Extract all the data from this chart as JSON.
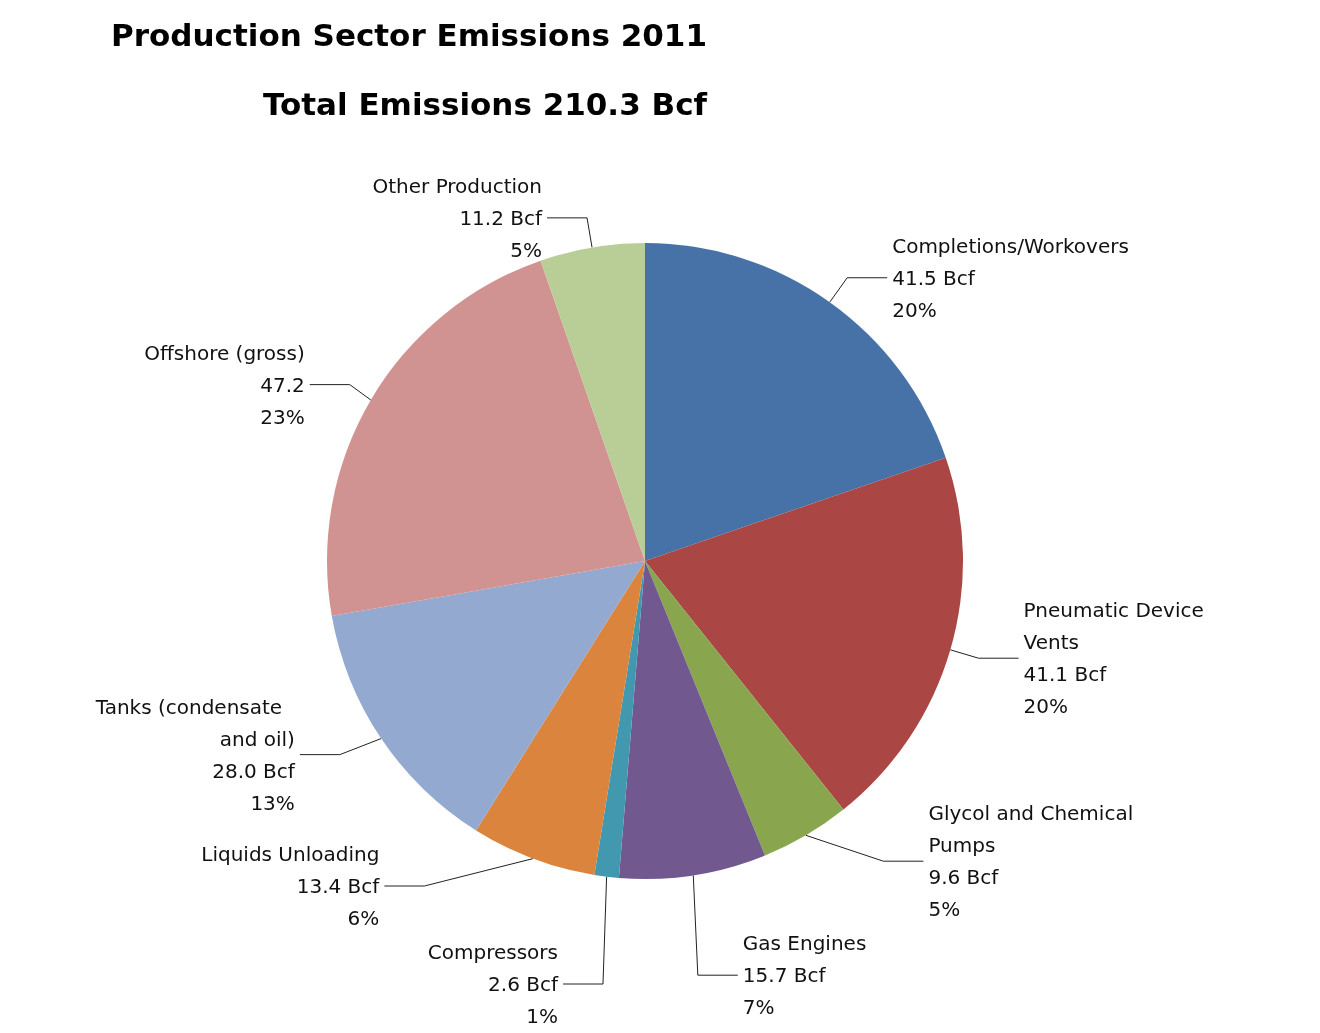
{
  "chart_data": {
    "type": "pie",
    "title": "Production Sector Emissions 2011",
    "subtitle": "Total Emissions 210.3 Bcf",
    "categories": [
      "Completions/Workovers",
      "Pneumatic Device Vents",
      "Glycol and Chemical Pumps",
      "Gas Engines",
      "Compressors",
      "Liquids Unloading",
      "Tanks (condensate  and oil)",
      "Offshore (gross)",
      "Other Production"
    ],
    "values": [
      41.5,
      41.1,
      9.6,
      15.7,
      2.6,
      13.4,
      28.0,
      47.2,
      11.2
    ],
    "value_labels": [
      "41.5 Bcf\n20%",
      "41.1 Bcf\n20%",
      "9.6 Bcf\n5%",
      "15.7 Bcf\n7%",
      "2.6 Bcf\n1%",
      "13.4 Bcf\n6%",
      "28.0 Bcf\n13%",
      "47.2\n23%",
      "11.2 Bcf\n5%"
    ],
    "colors": [
      "#4672a8",
      "#aa4644",
      "#89a54e",
      "#71588f",
      "#4198af",
      "#db843d",
      "#93a9cf",
      "#d19392",
      "#b9cd96"
    ],
    "legend": false
  }
}
